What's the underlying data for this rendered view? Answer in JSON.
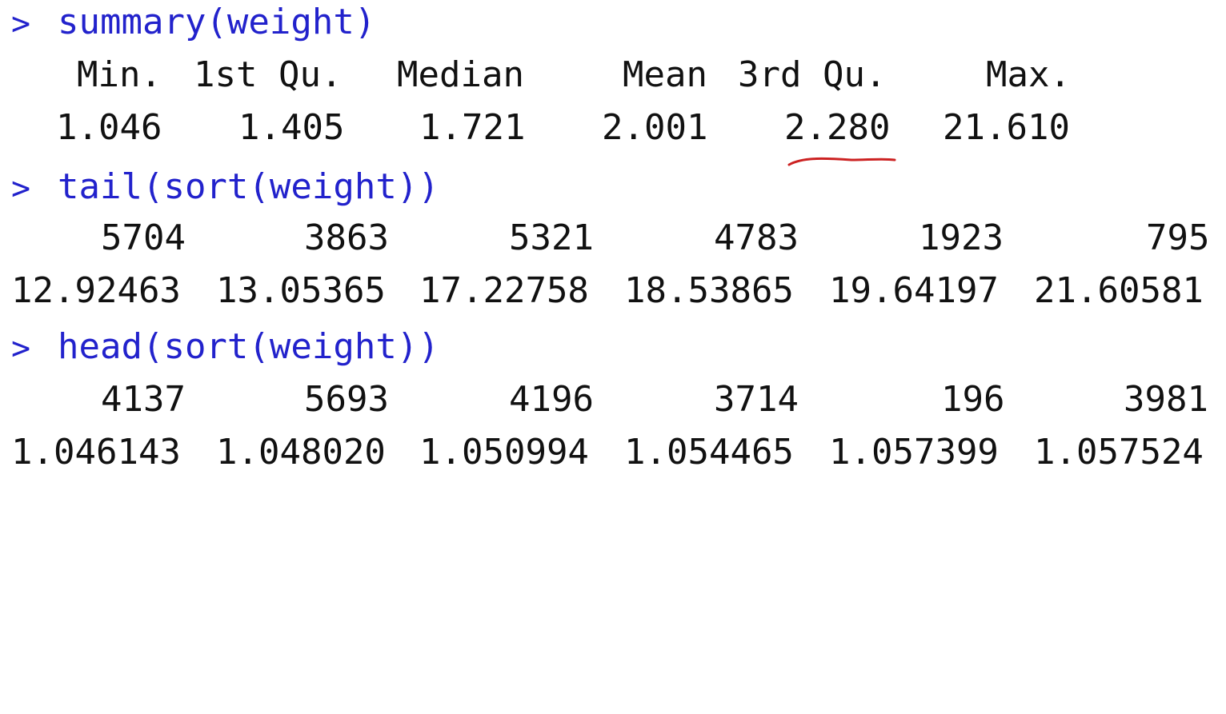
{
  "console": {
    "commands": [
      {
        "prompt": ">",
        "text": "summary(weight)",
        "header": [
          "Min.",
          "1st Qu.",
          "Median",
          "Mean",
          "3rd Qu.",
          "Max."
        ],
        "values": [
          "1.046",
          "1.405",
          "1.721",
          "2.001",
          "2.280",
          "21.610"
        ]
      },
      {
        "prompt": ">",
        "text": "tail(sort(weight))",
        "header": [
          "5704",
          "3863",
          "5321",
          "4783",
          "1923",
          "795"
        ],
        "values": [
          "12.92463",
          "13.05365",
          "17.22758",
          "18.53865",
          "19.64197",
          "21.60581"
        ]
      },
      {
        "prompt": ">",
        "text": "head(sort(weight))",
        "header": [
          "4137",
          "5693",
          "4196",
          "3714",
          "196",
          "3981"
        ],
        "values": [
          "1.046143",
          "1.048020",
          "1.050994",
          "1.054465",
          "1.057399",
          "1.057524"
        ]
      }
    ]
  },
  "colors": {
    "command": "#2222cc",
    "output": "#111111",
    "annotation": "#cc2222",
    "background": "#ffffff"
  },
  "annotation": {
    "icon": "red-underline-icon"
  }
}
